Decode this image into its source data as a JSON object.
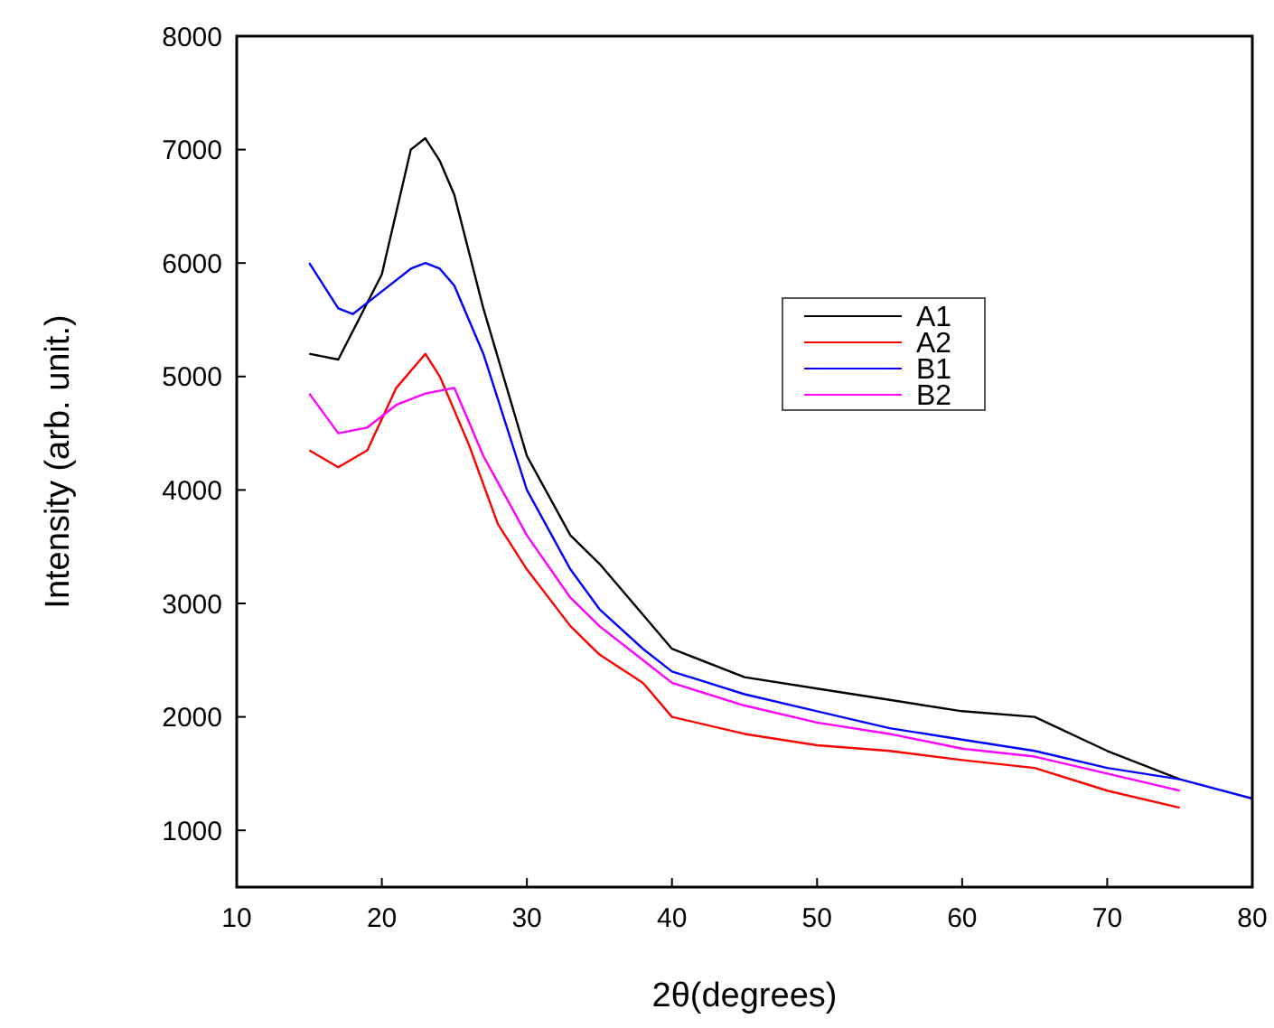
{
  "chart_data": {
    "type": "line",
    "xlabel": "2θ(degrees)",
    "ylabel": "Intensity (arb. unit.)",
    "xlim": [
      10,
      80
    ],
    "xticks": [
      10,
      20,
      30,
      40,
      50,
      60,
      70,
      80
    ],
    "ylim": [
      500,
      8000
    ],
    "yticks": [
      1000,
      2000,
      3000,
      4000,
      5000,
      6000,
      7000,
      8000
    ],
    "legend": "top right",
    "grid": false,
    "series": [
      {
        "name": "A1",
        "color": "#000000",
        "x": [
          15,
          17,
          20,
          22,
          23,
          24,
          25,
          27,
          30,
          33,
          35,
          38,
          40,
          45,
          50,
          55,
          60,
          65,
          70,
          75
        ],
        "values": [
          5200,
          5150,
          5900,
          7000,
          7100,
          6900,
          6600,
          5600,
          4300,
          3600,
          3350,
          2900,
          2600,
          2350,
          2250,
          2150,
          2050,
          2000,
          1700,
          1450
        ]
      },
      {
        "name": "A2",
        "color": "#ff0000",
        "x": [
          15,
          17,
          19,
          21,
          23,
          24,
          26,
          28,
          30,
          33,
          35,
          38,
          40,
          45,
          50,
          55,
          60,
          65,
          70,
          75
        ],
        "values": [
          4350,
          4200,
          4350,
          4900,
          5200,
          5000,
          4400,
          3700,
          3300,
          2800,
          2550,
          2300,
          2000,
          1850,
          1750,
          1700,
          1620,
          1550,
          1350,
          1200
        ]
      },
      {
        "name": "B1",
        "color": "#0000ff",
        "x": [
          15,
          17,
          18,
          20,
          22,
          23,
          24,
          25,
          27,
          30,
          33,
          35,
          38,
          40,
          45,
          50,
          55,
          60,
          65,
          70,
          75,
          80
        ],
        "values": [
          6000,
          5600,
          5550,
          5750,
          5950,
          6000,
          5950,
          5800,
          5200,
          4000,
          3300,
          2950,
          2600,
          2400,
          2200,
          2050,
          1900,
          1800,
          1700,
          1550,
          1450,
          1280
        ]
      },
      {
        "name": "B2",
        "color": "#ff00ff",
        "x": [
          15,
          17,
          19,
          21,
          23,
          25,
          27,
          30,
          33,
          35,
          38,
          40,
          45,
          50,
          55,
          60,
          65,
          70,
          75
        ],
        "values": [
          4850,
          4500,
          4550,
          4750,
          4850,
          4900,
          4300,
          3600,
          3050,
          2800,
          2500,
          2300,
          2100,
          1950,
          1850,
          1720,
          1650,
          1500,
          1350
        ]
      }
    ]
  }
}
